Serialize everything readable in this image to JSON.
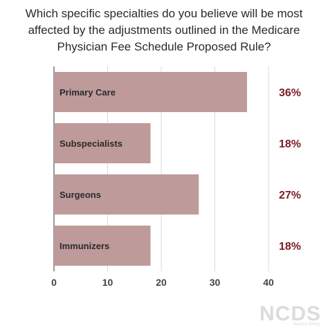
{
  "chart_data": {
    "type": "bar",
    "orientation": "horizontal",
    "title": "Which specific specialties do you believe will be most affected by the adjustments outlined in the Medicare Physician Fee Schedule Proposed Rule?",
    "categories": [
      "Primary Care",
      "Subspecialists",
      "Surgeons",
      "Immunizers"
    ],
    "values": [
      36,
      18,
      27,
      18
    ],
    "value_labels": [
      "36%",
      "18%",
      "27%",
      "18%"
    ],
    "xlim": [
      0,
      40
    ],
    "xticks": [
      "0",
      "10",
      "20",
      "30",
      "40"
    ],
    "xlabel": "",
    "ylabel": "",
    "grid": "vertical",
    "bar_color": "#bf9a9a",
    "label_color": "#7a1c24"
  },
  "logo": {
    "text": "NCDS",
    "sub": "Medical Billing"
  }
}
